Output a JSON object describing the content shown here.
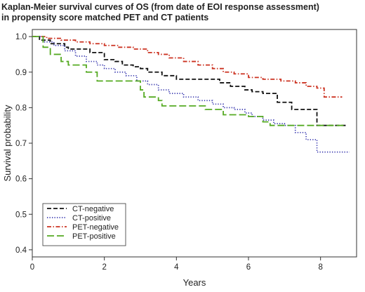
{
  "chart_data": {
    "type": "line",
    "step": true,
    "title_lines": [
      "Kaplan-Meier survival curves of OS (from date of EOI response assessment)",
      "in propensity score matched PET and CT patients"
    ],
    "xlabel": "Years",
    "ylabel": "Survival probability",
    "xlim": [
      0,
      9
    ],
    "ylim": [
      0.38,
      1.02
    ],
    "x_ticks": [
      0,
      2,
      4,
      6,
      8
    ],
    "x_tick_labels": [
      "0",
      "2",
      "4",
      "6",
      "8"
    ],
    "y_ticks": [
      0.4,
      0.5,
      0.6,
      0.7,
      0.8,
      0.9,
      1.0
    ],
    "y_tick_labels": [
      "0.4",
      "0.5",
      "0.6",
      "0.7",
      "0.8",
      "0.9",
      "1.0"
    ],
    "grid": false,
    "legend_position": "bottom-left",
    "series": [
      {
        "name": "CT-negative",
        "color": "#111111",
        "dash": "dashed",
        "x": [
          0,
          0.2,
          0.5,
          0.9,
          1.0,
          1.6,
          2.0,
          2.3,
          2.5,
          2.8,
          3.0,
          3.2,
          3.6,
          4.0,
          4.6,
          5.2,
          5.5,
          5.9,
          6.1,
          6.4,
          6.8,
          7.2,
          7.4,
          7.9,
          8.7
        ],
        "y": [
          1.0,
          0.99,
          0.98,
          0.97,
          0.965,
          0.955,
          0.935,
          0.93,
          0.92,
          0.915,
          0.91,
          0.9,
          0.89,
          0.88,
          0.88,
          0.87,
          0.86,
          0.85,
          0.845,
          0.84,
          0.815,
          0.795,
          0.795,
          0.75,
          0.75
        ]
      },
      {
        "name": "CT-positive",
        "color": "#3b3bb0",
        "dash": "dotted",
        "x": [
          0,
          0.3,
          0.6,
          0.9,
          1.2,
          1.5,
          1.8,
          2.0,
          2.3,
          2.6,
          2.9,
          3.2,
          3.5,
          3.8,
          4.2,
          4.6,
          5.0,
          5.3,
          5.6,
          5.9,
          6.1,
          6.4,
          6.7,
          7.0,
          7.3,
          7.6,
          7.9,
          8.8
        ],
        "y": [
          1.0,
          0.985,
          0.975,
          0.96,
          0.945,
          0.93,
          0.92,
          0.91,
          0.9,
          0.89,
          0.875,
          0.865,
          0.85,
          0.84,
          0.83,
          0.82,
          0.81,
          0.8,
          0.795,
          0.785,
          0.775,
          0.765,
          0.755,
          0.75,
          0.73,
          0.71,
          0.675,
          0.675
        ]
      },
      {
        "name": "PET-negative",
        "color": "#cc3322",
        "dash": "dashdot",
        "x": [
          0,
          0.4,
          0.8,
          1.2,
          1.6,
          2.0,
          2.4,
          2.8,
          3.2,
          3.5,
          3.8,
          4.2,
          4.6,
          5.0,
          5.3,
          5.6,
          6.0,
          6.4,
          6.9,
          7.3,
          7.6,
          7.9,
          8.1,
          8.6
        ],
        "y": [
          1.0,
          0.995,
          0.99,
          0.985,
          0.98,
          0.975,
          0.97,
          0.965,
          0.955,
          0.95,
          0.94,
          0.93,
          0.92,
          0.91,
          0.9,
          0.895,
          0.885,
          0.88,
          0.875,
          0.87,
          0.86,
          0.855,
          0.83,
          0.83
        ]
      },
      {
        "name": "PET-positive",
        "color": "#55aa22",
        "dash": "longdash",
        "x": [
          0,
          0.3,
          0.5,
          0.8,
          1.0,
          1.5,
          1.8,
          2.3,
          3.0,
          3.1,
          3.5,
          3.6,
          4.4,
          4.8,
          5.3,
          6.0,
          6.4,
          6.6,
          8.7
        ],
        "y": [
          1.0,
          0.97,
          0.95,
          0.93,
          0.92,
          0.9,
          0.875,
          0.875,
          0.85,
          0.83,
          0.82,
          0.805,
          0.805,
          0.795,
          0.78,
          0.775,
          0.76,
          0.75,
          0.75
        ]
      }
    ]
  }
}
